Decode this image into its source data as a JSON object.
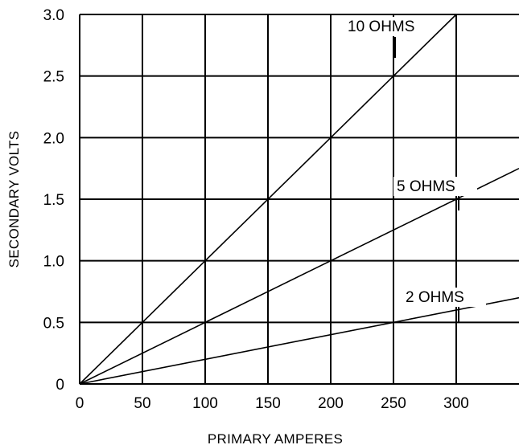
{
  "chart_data": {
    "type": "line",
    "title": "",
    "xlabel": "PRIMARY AMPERES",
    "ylabel": "SECONDARY VOLTS",
    "xlim": [
      0,
      350
    ],
    "ylim": [
      0,
      3.0
    ],
    "grid": true,
    "x_ticks": [
      "0",
      "50",
      "100",
      "150",
      "200",
      "250",
      "300"
    ],
    "y_ticks": [
      "0",
      "0.5",
      "1.0",
      "1.5",
      "2.0",
      "2.5",
      "3.0"
    ],
    "series": [
      {
        "name": "10 OHMS",
        "x": [
          0,
          300
        ],
        "y": [
          0,
          3.0
        ]
      },
      {
        "name": "5 OHMS",
        "x": [
          0,
          350
        ],
        "y": [
          0,
          1.75
        ]
      },
      {
        "name": "2 OHMS",
        "x": [
          0,
          350
        ],
        "y": [
          0,
          0.7
        ]
      }
    ],
    "colors": {
      "line": "#000000",
      "background": "#ffffff"
    }
  }
}
